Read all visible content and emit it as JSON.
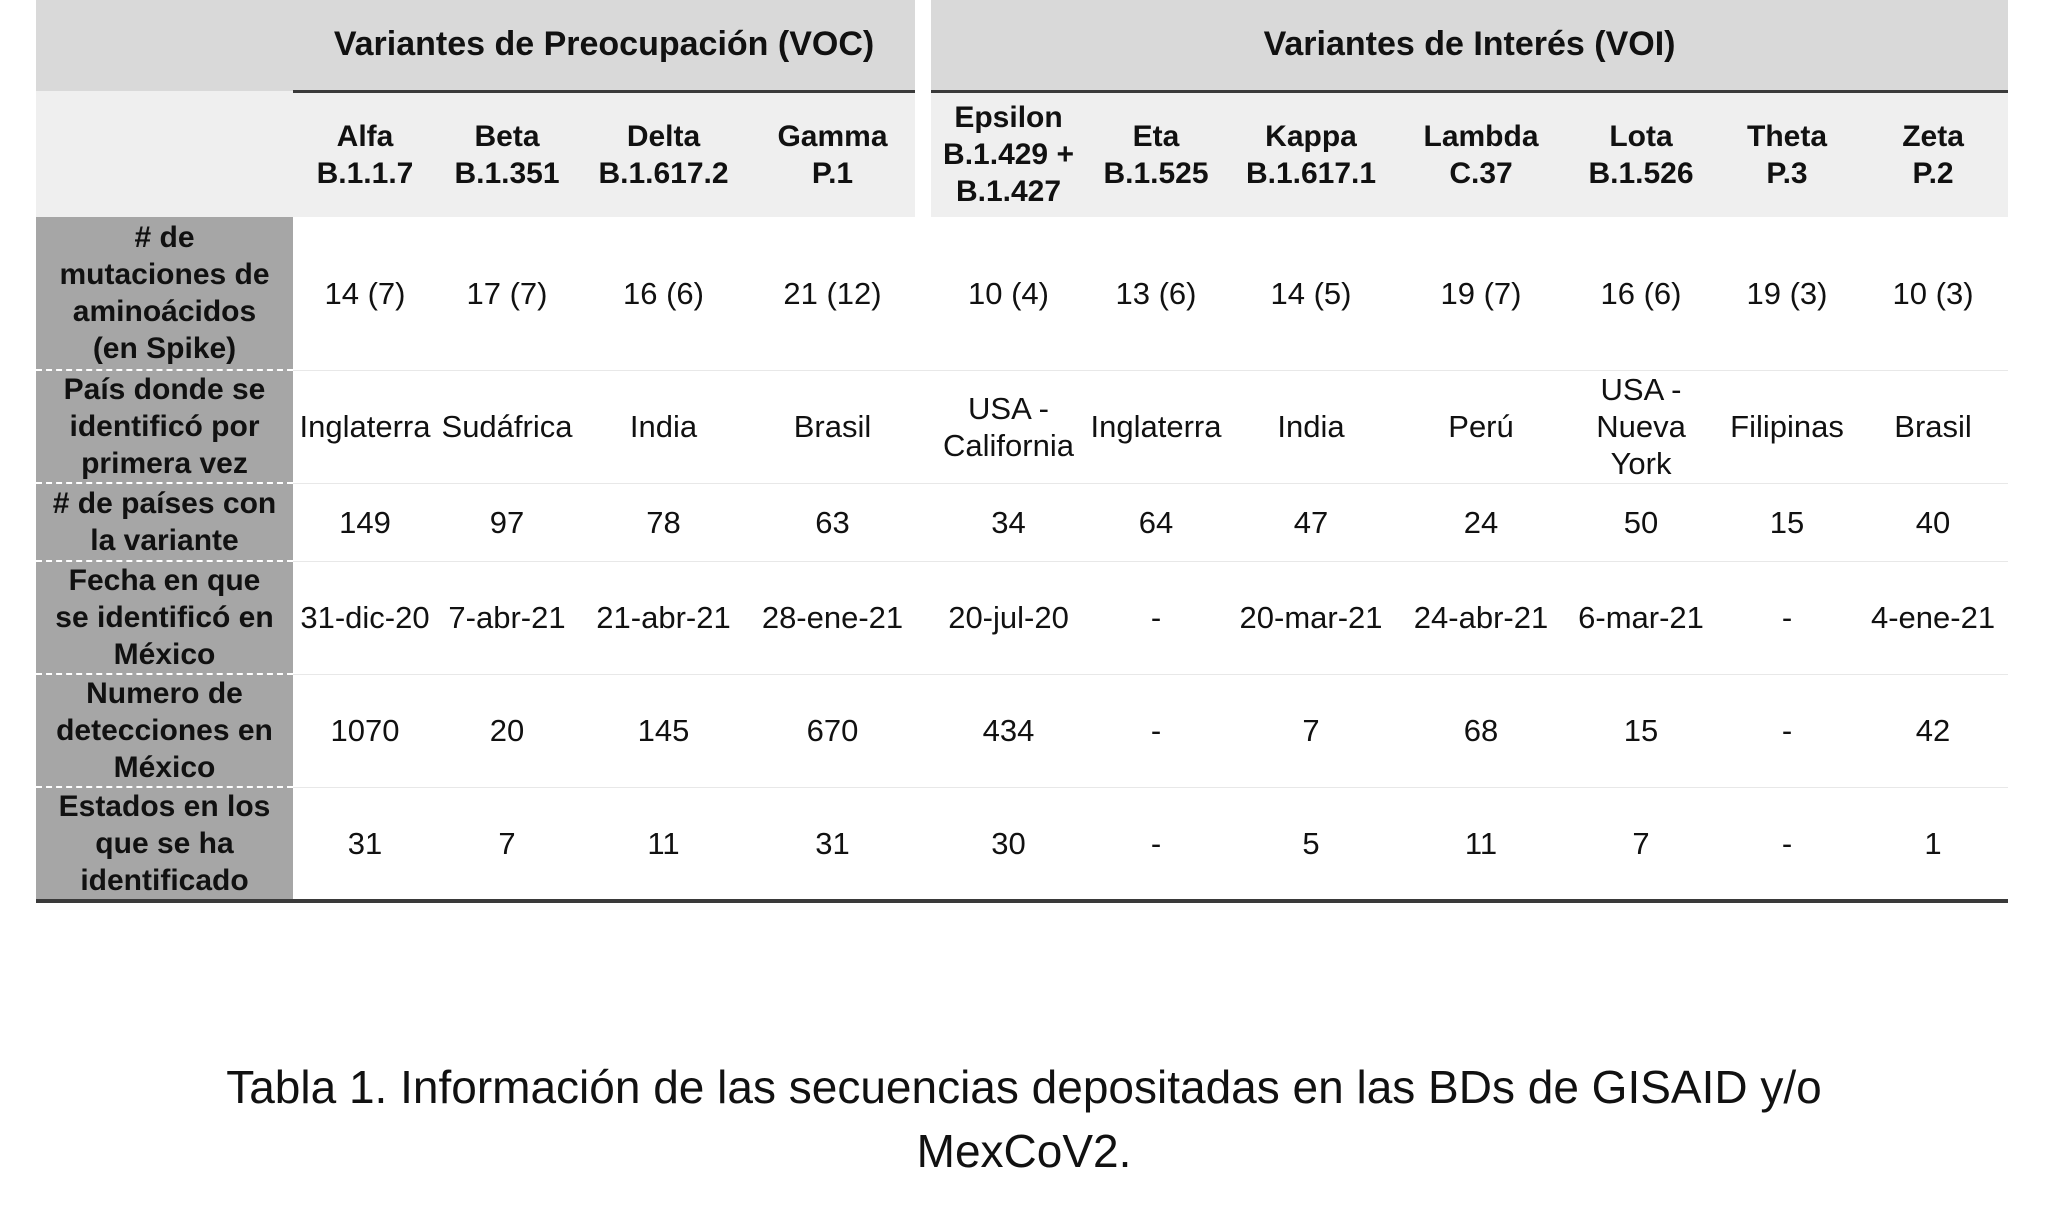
{
  "groups": {
    "voc": "Variantes de Preocupación (VOC)",
    "voi": "Variantes de Interés (VOI)"
  },
  "variants": [
    {
      "name": "Alfa",
      "lineage": "B.1.1.7"
    },
    {
      "name": "Beta",
      "lineage": "B.1.351"
    },
    {
      "name": "Delta",
      "lineage": "B.1.617.2"
    },
    {
      "name": "Gamma",
      "lineage": "P.1"
    },
    {
      "name": "Epsilon",
      "lineage": "B.1.429 +",
      "lineage2": "B.1.427"
    },
    {
      "name": "Eta",
      "lineage": "B.1.525"
    },
    {
      "name": "Kappa",
      "lineage": "B.1.617.1"
    },
    {
      "name": "Lambda",
      "lineage": "C.37"
    },
    {
      "name": "Lota",
      "lineage": "B.1.526"
    },
    {
      "name": "Theta",
      "lineage": "P.3"
    },
    {
      "name": "Zeta",
      "lineage": "P.2"
    }
  ],
  "rows": [
    {
      "label": [
        "# de",
        "mutaciones de",
        "aminoácidos",
        "(en Spike)"
      ],
      "values": [
        [
          "14 (7)"
        ],
        [
          "17 (7)"
        ],
        [
          "16 (6)"
        ],
        [
          "21 (12)"
        ],
        [
          "10 (4)"
        ],
        [
          "13 (6)"
        ],
        [
          "14 (5)"
        ],
        [
          "19 (7)"
        ],
        [
          "16 (6)"
        ],
        [
          "19 (3)"
        ],
        [
          "10 (3)"
        ]
      ]
    },
    {
      "label": [
        "País donde se",
        "identificó por",
        "primera vez"
      ],
      "values": [
        [
          "Inglaterra"
        ],
        [
          "Sudáfrica"
        ],
        [
          "India"
        ],
        [
          "Brasil"
        ],
        [
          "USA -",
          "California"
        ],
        [
          "Inglaterra"
        ],
        [
          "India"
        ],
        [
          "Perú"
        ],
        [
          "USA -",
          "Nueva",
          "York"
        ],
        [
          "Filipinas"
        ],
        [
          "Brasil"
        ]
      ]
    },
    {
      "label": [
        "# de países con",
        "la variante"
      ],
      "values": [
        [
          "149"
        ],
        [
          "97"
        ],
        [
          "78"
        ],
        [
          "63"
        ],
        [
          "34"
        ],
        [
          "64"
        ],
        [
          "47"
        ],
        [
          "24"
        ],
        [
          "50"
        ],
        [
          "15"
        ],
        [
          "40"
        ]
      ]
    },
    {
      "label": [
        "Fecha en que",
        "se identificó en",
        "México"
      ],
      "values": [
        [
          "31-dic-20"
        ],
        [
          "7-abr-21"
        ],
        [
          "21-abr-21"
        ],
        [
          "28-ene-21"
        ],
        [
          "20-jul-20"
        ],
        [
          "-"
        ],
        [
          "20-mar-21"
        ],
        [
          "24-abr-21"
        ],
        [
          "6-mar-21"
        ],
        [
          "-"
        ],
        [
          "4-ene-21"
        ]
      ]
    },
    {
      "label": [
        "Numero de",
        "detecciones en",
        "México"
      ],
      "values": [
        [
          "1070"
        ],
        [
          "20"
        ],
        [
          "145"
        ],
        [
          "670"
        ],
        [
          "434"
        ],
        [
          "-"
        ],
        [
          "7"
        ],
        [
          "68"
        ],
        [
          "15"
        ],
        [
          "-"
        ],
        [
          "42"
        ]
      ]
    },
    {
      "label": [
        "Estados en los",
        "que se ha",
        "identificado"
      ],
      "values": [
        [
          "31"
        ],
        [
          "7"
        ],
        [
          "11"
        ],
        [
          "31"
        ],
        [
          "30"
        ],
        [
          "-"
        ],
        [
          "5"
        ],
        [
          "11"
        ],
        [
          "7"
        ],
        [
          "-"
        ],
        [
          "1"
        ]
      ]
    }
  ],
  "caption": [
    "Tabla 1. Información de las secuencias depositadas en las BDs de GISAID y/o",
    "MexCoV2."
  ]
}
